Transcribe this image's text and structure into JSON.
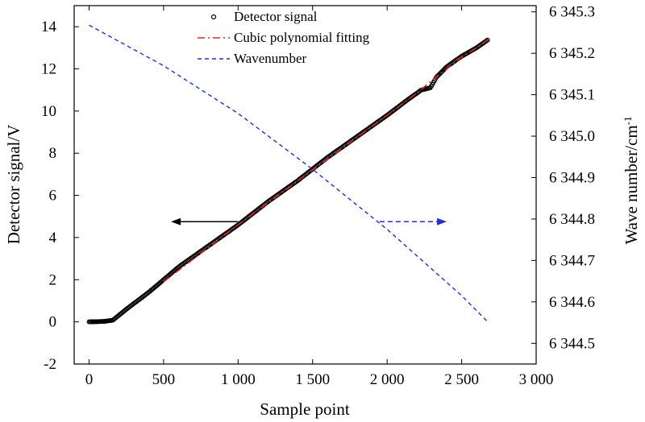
{
  "chart_data": {
    "type": "line",
    "xlabel": "Sample point",
    "ylabel": "Detector signal/V",
    "y2label_base": "Wave number/cm",
    "y2label_exp": "-1",
    "xlim": [
      -100,
      3000
    ],
    "ylim": [
      -2,
      15
    ],
    "y2lim": [
      6344.45,
      6345.315
    ],
    "x_ticks": [
      0,
      500,
      1000,
      1500,
      2000,
      2500,
      3000
    ],
    "x_tick_labels": [
      "0",
      "500",
      "1 000",
      "1 500",
      "2 000",
      "2 500",
      "3 000"
    ],
    "y_ticks": [
      -2,
      0,
      2,
      4,
      6,
      8,
      10,
      12,
      14
    ],
    "y_tick_labels": [
      "-2",
      "0",
      "2",
      "4",
      "6",
      "8",
      "10",
      "12",
      "14"
    ],
    "y2_ticks": [
      6344.5,
      6344.6,
      6344.7,
      6344.8,
      6344.9,
      6345.0,
      6345.1,
      6345.2,
      6345.3
    ],
    "y2_tick_labels": [
      "6 344.5",
      "6 344.6",
      "6 344.7",
      "6 344.8",
      "6 344.9",
      "6 345.0",
      "6 345.1",
      "6 345.2",
      "6 345.3"
    ],
    "legend_position": "top-center",
    "series": [
      {
        "name": "Detector signal",
        "axis": "left",
        "style": "circles",
        "color": "#000000",
        "x": [
          0,
          100,
          160,
          250,
          400,
          600,
          800,
          1000,
          1200,
          1400,
          1600,
          1800,
          2000,
          2150,
          2230,
          2290,
          2330,
          2400,
          2500,
          2600,
          2680
        ],
        "y": [
          0.0,
          0.02,
          0.08,
          0.6,
          1.4,
          2.6,
          3.6,
          4.6,
          5.7,
          6.7,
          7.8,
          8.8,
          9.8,
          10.6,
          11.0,
          11.1,
          11.6,
          12.1,
          12.6,
          13.0,
          13.4
        ]
      },
      {
        "name": "Cubic polynomial fitting",
        "axis": "left",
        "style": "dash-dot",
        "color": "#e8231f",
        "x": [
          500,
          1000,
          1500,
          2000,
          2200,
          2250,
          2300,
          2400,
          2500,
          2600,
          2680
        ],
        "y": [
          1.9,
          4.6,
          7.2,
          9.8,
          10.85,
          11.15,
          11.45,
          12.0,
          12.55,
          13.0,
          13.4
        ]
      },
      {
        "name": "Wavenumber",
        "axis": "right",
        "style": "dashed",
        "color": "#1f2fd6",
        "x": [
          0,
          500,
          1000,
          1500,
          2000,
          2500,
          2680
        ],
        "y": [
          6345.268,
          6345.17,
          6345.055,
          6344.92,
          6344.775,
          6344.615,
          6344.55
        ]
      }
    ],
    "annotations": [
      {
        "type": "arrow",
        "direction": "left",
        "axis": "left",
        "x_from": 1000,
        "x_to": 550,
        "y": 4.75,
        "color": "#000000"
      },
      {
        "type": "arrow",
        "direction": "right",
        "axis": "left",
        "x_from": 1950,
        "x_to": 2400,
        "y": 4.75,
        "color": "#1f2fd6"
      }
    ]
  }
}
